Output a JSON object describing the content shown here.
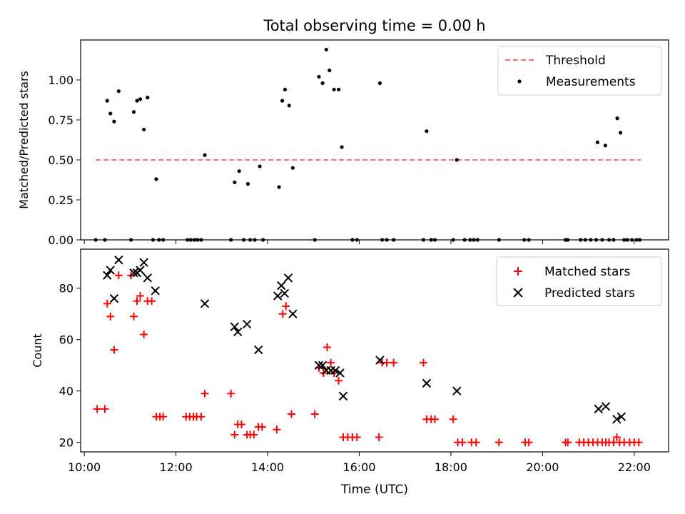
{
  "figure": {
    "title": "Total observing time = 0.00 h"
  },
  "chart_data": [
    {
      "type": "scatter",
      "panel": "top",
      "title": "Total observing time = 0.00 h",
      "xlabel": "",
      "ylabel": "Matched/Predicted stars",
      "xlim": [
        9.92,
        22.75
      ],
      "ylim": [
        0.0,
        1.25
      ],
      "x_ticks": [
        10,
        12,
        14,
        16,
        18,
        20,
        22
      ],
      "y_ticks": [
        0.0,
        0.25,
        0.5,
        0.75,
        1.0
      ],
      "y_tick_labels": [
        "0.00",
        "0.25",
        "0.50",
        "0.75",
        "1.00"
      ],
      "grid": false,
      "legend": "top-right",
      "legend_entries": [
        "Threshold",
        "Measurements"
      ],
      "colors": {
        "threshold": "#ff6e6e",
        "measurements": "#000000"
      },
      "threshold": {
        "name": "Threshold",
        "value": 0.5,
        "x_range": [
          10.25,
          22.15
        ]
      },
      "series": [
        {
          "name": "Measurements",
          "points": [
            [
              10.25,
              0
            ],
            [
              10.45,
              0
            ],
            [
              10.5,
              0.87
            ],
            [
              10.57,
              0.79
            ],
            [
              10.65,
              0.74
            ],
            [
              10.75,
              0.93
            ],
            [
              11.02,
              0
            ],
            [
              11.08,
              0.8
            ],
            [
              11.15,
              0.87
            ],
            [
              11.22,
              0.88
            ],
            [
              11.3,
              0.69
            ],
            [
              11.38,
              0.89
            ],
            [
              11.5,
              0
            ],
            [
              11.57,
              0.38
            ],
            [
              11.63,
              0
            ],
            [
              11.72,
              0
            ],
            [
              12.25,
              0
            ],
            [
              12.32,
              0
            ],
            [
              12.4,
              0
            ],
            [
              12.47,
              0
            ],
            [
              12.55,
              0
            ],
            [
              12.63,
              0.53
            ],
            [
              13.2,
              0
            ],
            [
              13.28,
              0.36
            ],
            [
              13.38,
              0.43
            ],
            [
              13.48,
              0
            ],
            [
              13.57,
              0.35
            ],
            [
              13.62,
              0
            ],
            [
              13.72,
              0
            ],
            [
              13.83,
              0.46
            ],
            [
              13.9,
              0
            ],
            [
              14.25,
              0.33
            ],
            [
              14.32,
              0.87
            ],
            [
              14.38,
              0.94
            ],
            [
              14.47,
              0.84
            ],
            [
              14.55,
              0.45
            ],
            [
              15.03,
              0
            ],
            [
              15.12,
              1.02
            ],
            [
              15.2,
              0.98
            ],
            [
              15.28,
              1.19
            ],
            [
              15.35,
              1.06
            ],
            [
              15.45,
              0.94
            ],
            [
              15.55,
              0.94
            ],
            [
              15.62,
              0.58
            ],
            [
              15.85,
              0
            ],
            [
              15.95,
              0
            ],
            [
              16.45,
              0.98
            ],
            [
              16.5,
              0
            ],
            [
              16.6,
              0
            ],
            [
              16.75,
              0
            ],
            [
              17.4,
              0
            ],
            [
              17.47,
              0.68
            ],
            [
              17.57,
              0
            ],
            [
              17.65,
              0
            ],
            [
              18.05,
              0
            ],
            [
              18.13,
              0.5
            ],
            [
              18.3,
              0
            ],
            [
              18.42,
              0
            ],
            [
              18.5,
              0
            ],
            [
              18.58,
              0
            ],
            [
              19.05,
              0
            ],
            [
              19.6,
              0
            ],
            [
              19.7,
              0
            ],
            [
              20.5,
              0
            ],
            [
              20.55,
              0
            ],
            [
              20.83,
              0
            ],
            [
              20.93,
              0
            ],
            [
              21.05,
              0
            ],
            [
              21.17,
              0
            ],
            [
              21.2,
              0.61
            ],
            [
              21.3,
              0
            ],
            [
              21.37,
              0.59
            ],
            [
              21.45,
              0
            ],
            [
              21.55,
              0
            ],
            [
              21.63,
              0.76
            ],
            [
              21.7,
              0.67
            ],
            [
              21.78,
              0
            ],
            [
              21.85,
              0
            ],
            [
              21.95,
              0
            ],
            [
              22.05,
              0
            ],
            [
              22.12,
              0
            ]
          ]
        }
      ]
    },
    {
      "type": "scatter",
      "panel": "bottom",
      "xlabel": "Time (UTC)",
      "ylabel": "Count",
      "xlim": [
        9.92,
        22.75
      ],
      "ylim": [
        16.3,
        95.2
      ],
      "x_ticks": [
        10,
        12,
        14,
        16,
        18,
        20,
        22
      ],
      "x_tick_labels": [
        "10:00",
        "12:00",
        "14:00",
        "16:00",
        "18:00",
        "20:00",
        "22:00"
      ],
      "y_ticks": [
        20,
        40,
        60,
        80
      ],
      "y_tick_labels": [
        "20",
        "40",
        "60",
        "80"
      ],
      "grid": false,
      "legend": "top-right",
      "legend_entries": [
        "Matched stars",
        "Predicted stars"
      ],
      "colors": {
        "matched": "#ff0000",
        "predicted": "#000000"
      },
      "series": [
        {
          "name": "Matched stars",
          "marker": "plus",
          "points": [
            [
              10.28,
              33
            ],
            [
              10.45,
              33
            ],
            [
              10.5,
              74
            ],
            [
              10.57,
              69
            ],
            [
              10.65,
              56
            ],
            [
              10.75,
              85
            ],
            [
              11.02,
              85
            ],
            [
              11.08,
              69
            ],
            [
              11.15,
              75
            ],
            [
              11.22,
              77
            ],
            [
              11.3,
              62
            ],
            [
              11.38,
              75
            ],
            [
              11.47,
              75
            ],
            [
              11.57,
              30
            ],
            [
              11.65,
              30
            ],
            [
              11.72,
              30
            ],
            [
              12.22,
              30
            ],
            [
              12.3,
              30
            ],
            [
              12.38,
              30
            ],
            [
              12.45,
              30
            ],
            [
              12.55,
              30
            ],
            [
              12.63,
              39
            ],
            [
              13.2,
              39
            ],
            [
              13.28,
              23
            ],
            [
              13.35,
              27
            ],
            [
              13.43,
              27
            ],
            [
              13.55,
              23
            ],
            [
              13.62,
              23
            ],
            [
              13.7,
              23
            ],
            [
              13.8,
              26
            ],
            [
              13.88,
              26
            ],
            [
              14.2,
              25
            ],
            [
              14.33,
              70
            ],
            [
              14.4,
              73
            ],
            [
              14.52,
              31
            ],
            [
              15.03,
              31
            ],
            [
              15.12,
              49
            ],
            [
              15.22,
              47
            ],
            [
              15.3,
              57
            ],
            [
              15.38,
              51
            ],
            [
              15.45,
              47
            ],
            [
              15.55,
              44
            ],
            [
              15.65,
              22
            ],
            [
              15.75,
              22
            ],
            [
              15.85,
              22
            ],
            [
              15.95,
              22
            ],
            [
              16.43,
              22
            ],
            [
              16.5,
              51
            ],
            [
              16.6,
              51
            ],
            [
              16.75,
              51
            ],
            [
              17.4,
              51
            ],
            [
              17.47,
              29
            ],
            [
              17.57,
              29
            ],
            [
              17.65,
              29
            ],
            [
              18.05,
              29
            ],
            [
              18.15,
              20
            ],
            [
              18.25,
              20
            ],
            [
              18.45,
              20
            ],
            [
              18.55,
              20
            ],
            [
              19.05,
              20
            ],
            [
              19.62,
              20
            ],
            [
              19.7,
              20
            ],
            [
              20.5,
              20
            ],
            [
              20.55,
              20
            ],
            [
              20.8,
              20
            ],
            [
              20.9,
              20
            ],
            [
              21.0,
              20
            ],
            [
              21.1,
              20
            ],
            [
              21.2,
              20
            ],
            [
              21.3,
              20
            ],
            [
              21.38,
              20
            ],
            [
              21.45,
              20
            ],
            [
              21.55,
              20
            ],
            [
              21.62,
              22
            ],
            [
              21.68,
              20
            ],
            [
              21.78,
              20
            ],
            [
              21.9,
              20
            ],
            [
              22.0,
              20
            ],
            [
              22.1,
              20
            ]
          ]
        },
        {
          "name": "Predicted stars",
          "marker": "x",
          "points": [
            [
              10.5,
              85
            ],
            [
              10.57,
              87
            ],
            [
              10.65,
              76
            ],
            [
              10.75,
              91
            ],
            [
              11.08,
              86
            ],
            [
              11.15,
              86
            ],
            [
              11.22,
              87
            ],
            [
              11.3,
              90
            ],
            [
              11.38,
              84
            ],
            [
              11.55,
              79
            ],
            [
              12.63,
              74
            ],
            [
              13.28,
              65
            ],
            [
              13.35,
              63
            ],
            [
              13.55,
              66
            ],
            [
              13.8,
              56
            ],
            [
              14.22,
              77
            ],
            [
              14.3,
              81
            ],
            [
              14.37,
              78
            ],
            [
              14.45,
              84
            ],
            [
              14.55,
              70
            ],
            [
              15.12,
              50
            ],
            [
              15.2,
              50
            ],
            [
              15.28,
              48
            ],
            [
              15.38,
              48
            ],
            [
              15.48,
              48
            ],
            [
              15.58,
              47
            ],
            [
              15.65,
              38
            ],
            [
              16.45,
              52
            ],
            [
              17.47,
              43
            ],
            [
              18.13,
              40
            ],
            [
              21.22,
              33
            ],
            [
              21.38,
              34
            ],
            [
              21.62,
              29
            ],
            [
              21.72,
              30
            ]
          ]
        }
      ]
    }
  ]
}
